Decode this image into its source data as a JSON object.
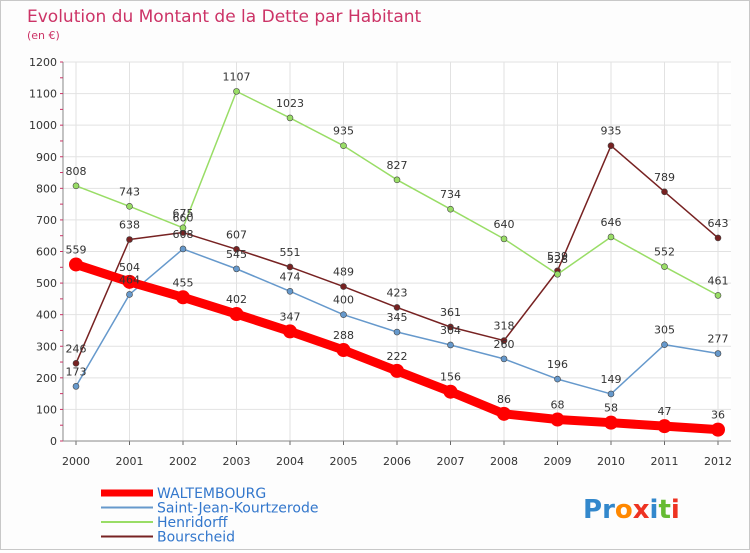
{
  "chart_data": {
    "type": "line",
    "title": "Evolution du Montant de la Dette par Habitant",
    "subtitle": "(en €)",
    "xlabel": "",
    "ylabel": "",
    "x": [
      "2000",
      "2001",
      "2002",
      "2003",
      "2004",
      "2005",
      "2006",
      "2007",
      "2008",
      "2009",
      "2010",
      "2011",
      "2012"
    ],
    "ylim": [
      0,
      1200
    ],
    "yticks": [
      "0",
      "100",
      "200",
      "300",
      "400",
      "500",
      "600",
      "700",
      "800",
      "900",
      "1000",
      "1100",
      "1200"
    ],
    "grid": true,
    "legend_position": "bottom-left",
    "series": [
      {
        "name": "WALTEMBOURG",
        "color": "#ff0000",
        "values": [
          559,
          504,
          455,
          402,
          347,
          288,
          222,
          156,
          86,
          68,
          58,
          47,
          36
        ]
      },
      {
        "name": "Saint-Jean-Kourtzerode",
        "color": "#6699cc",
        "values": [
          173,
          464,
          608,
          545,
          474,
          400,
          345,
          304,
          260,
          196,
          149,
          305,
          277
        ]
      },
      {
        "name": "Henridorff",
        "color": "#99dd66",
        "values": [
          808,
          743,
          675,
          1107,
          1023,
          935,
          827,
          734,
          640,
          528,
          646,
          552,
          461
        ]
      },
      {
        "name": "Bourscheid",
        "color": "#772222",
        "values": [
          246,
          638,
          660,
          607,
          551,
          489,
          423,
          361,
          318,
          539,
          935,
          789,
          643
        ]
      }
    ]
  },
  "logo_text": "Proxiti"
}
